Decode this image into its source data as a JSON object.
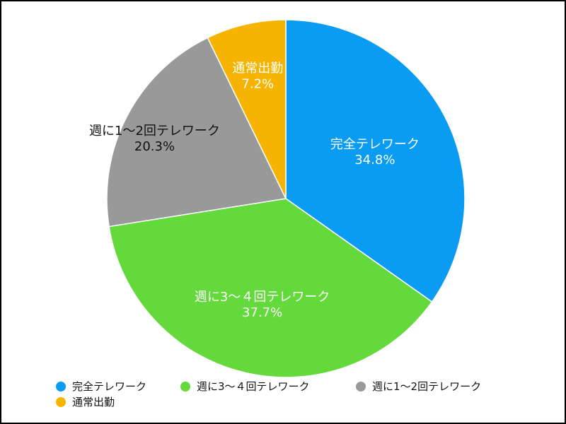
{
  "chart_data": {
    "type": "pie",
    "title": "",
    "start_angle_deg": 0,
    "direction": "clockwise",
    "slices": [
      {
        "label": "完全テレワーク",
        "value": 34.8,
        "value_label": "34.8%",
        "color": "#0a9cf3",
        "label_color": "#ffffff"
      },
      {
        "label": "週に3〜４回テレワーク",
        "value": 37.7,
        "value_label": "37.7%",
        "color": "#63d93c",
        "label_color": "#ffffff"
      },
      {
        "label": "週に1〜2回テレワーク",
        "value": 20.3,
        "value_label": "20.3%",
        "color": "#999999",
        "label_color": "#111111"
      },
      {
        "label": "通常出勤",
        "value": 7.2,
        "value_label": "7.2%",
        "color": "#f6b400",
        "label_color": "#ffffff"
      }
    ],
    "legend": {
      "position": "bottom",
      "items": [
        "完全テレワーク",
        "週に3〜４回テレワーク",
        "週に1〜2回テレワーク",
        "通常出勤"
      ]
    }
  }
}
